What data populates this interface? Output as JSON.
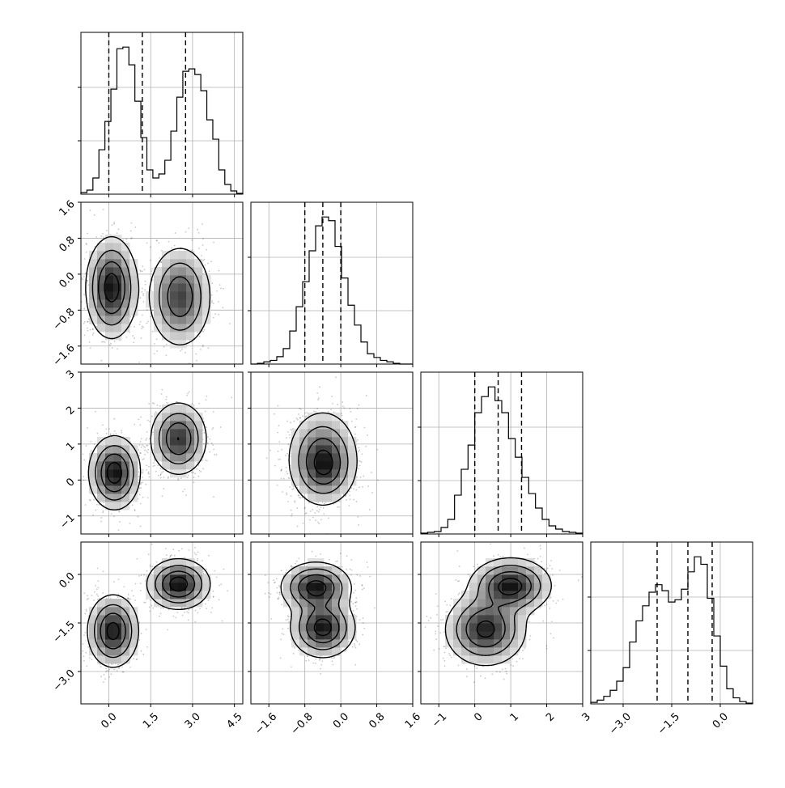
{
  "chart_data": {
    "type": "corner",
    "title": "",
    "grid": true,
    "variables": [
      {
        "range": [
          -1.0,
          4.8
        ],
        "ticks": [
          "0.0",
          "1.5",
          "3.0",
          "4.5"
        ],
        "tick_values": [
          0.0,
          1.5,
          3.0,
          4.5
        ]
      },
      {
        "range": [
          -2.0,
          1.6
        ],
        "ticks": [
          "−1.6",
          "−0.8",
          "0.0",
          "0.8",
          "1.6"
        ],
        "tick_values": [
          -1.6,
          -0.8,
          0.0,
          0.8,
          1.6
        ]
      },
      {
        "range": [
          -1.5,
          3.0
        ],
        "ticks": [
          "−1",
          "0",
          "1",
          "2",
          "3"
        ],
        "tick_values": [
          -1,
          0,
          1,
          2,
          3
        ]
      },
      {
        "range": [
          -4.0,
          1.0
        ],
        "ticks": [
          "−3.0",
          "−1.5",
          "0.0"
        ],
        "tick_values": [
          -3.0,
          -1.5,
          0.0
        ]
      }
    ],
    "histograms": [
      {
        "bins": [
          -1.0,
          4.8
        ],
        "counts": [
          2,
          5,
          20,
          55,
          90,
          130,
          180,
          182,
          160,
          115,
          70,
          30,
          20,
          25,
          42,
          78,
          120,
          152,
          155,
          148,
          128,
          92,
          68,
          30,
          12,
          4,
          1
        ],
        "quantiles": [
          0.0,
          1.2,
          2.75
        ]
      },
      {
        "bins": [
          -2.0,
          1.6
        ],
        "counts": [
          0,
          1,
          3,
          5,
          10,
          21,
          45,
          78,
          112,
          154,
          188,
          200,
          195,
          160,
          117,
          80,
          53,
          30,
          14,
          9,
          5,
          3,
          1,
          0,
          0
        ],
        "quantiles": [
          -0.8,
          -0.4,
          0.0
        ]
      },
      {
        "bins": [
          -1.5,
          3.0
        ],
        "counts": [
          1,
          2,
          3,
          8,
          18,
          48,
          80,
          110,
          150,
          170,
          182,
          165,
          150,
          118,
          95,
          70,
          50,
          32,
          18,
          10,
          6,
          3,
          2,
          1
        ],
        "quantiles": [
          0.0,
          0.65,
          1.3
        ]
      },
      {
        "bins": [
          -4.0,
          1.0
        ],
        "counts": [
          2,
          5,
          10,
          18,
          30,
          48,
          82,
          110,
          130,
          148,
          158,
          150,
          135,
          138,
          152,
          175,
          195,
          185,
          140,
          90,
          50,
          20,
          8,
          3,
          1
        ],
        "quantiles": [
          -1.95,
          -1.0,
          -0.25
        ]
      }
    ],
    "pairs": [
      {
        "x": 0,
        "y": 1,
        "modes": [
          {
            "cx": 0.1,
            "cy": -0.3,
            "sx": 0.45,
            "sy": 0.55,
            "w": 1.0,
            "rho": 0.0
          },
          {
            "cx": 2.55,
            "cy": -0.5,
            "sx": 0.55,
            "sy": 0.55,
            "w": 0.8,
            "rho": 0.0
          }
        ]
      },
      {
        "x": 0,
        "y": 2,
        "modes": [
          {
            "cx": 0.2,
            "cy": 0.2,
            "sx": 0.45,
            "sy": 0.5,
            "w": 1.0,
            "rho": 0.0
          },
          {
            "cx": 2.5,
            "cy": 1.15,
            "sx": 0.5,
            "sy": 0.5,
            "w": 0.85,
            "rho": 0.0
          }
        ]
      },
      {
        "x": 1,
        "y": 2,
        "modes": [
          {
            "cx": -0.4,
            "cy": 0.6,
            "sx": 0.38,
            "sy": 0.65,
            "w": 1.0,
            "rho": 0.0
          },
          {
            "cx": -0.35,
            "cy": 0.3,
            "sx": 0.3,
            "sy": 0.4,
            "w": 0.3,
            "rho": 0.0
          }
        ]
      },
      {
        "x": 0,
        "y": 3,
        "modes": [
          {
            "cx": 0.15,
            "cy": -1.75,
            "sx": 0.45,
            "sy": 0.55,
            "w": 1.0,
            "rho": 0.0
          },
          {
            "cx": 2.5,
            "cy": -0.3,
            "sx": 0.55,
            "sy": 0.38,
            "w": 1.05,
            "rho": 0.0
          }
        ]
      },
      {
        "x": 1,
        "y": 3,
        "modes": [
          {
            "cx": -0.55,
            "cy": -0.4,
            "sx": 0.38,
            "sy": 0.38,
            "w": 1.0,
            "rho": 0.0
          },
          {
            "cx": -0.4,
            "cy": -1.65,
            "sx": 0.35,
            "sy": 0.45,
            "w": 1.0,
            "rho": 0.0
          }
        ]
      },
      {
        "x": 2,
        "y": 3,
        "modes": [
          {
            "cx": 0.3,
            "cy": -1.7,
            "sx": 0.55,
            "sy": 0.55,
            "w": 1.0,
            "rho": 0.0
          },
          {
            "cx": 1.0,
            "cy": -0.35,
            "sx": 0.55,
            "sy": 0.42,
            "w": 1.05,
            "rho": 0.0
          }
        ]
      }
    ]
  }
}
